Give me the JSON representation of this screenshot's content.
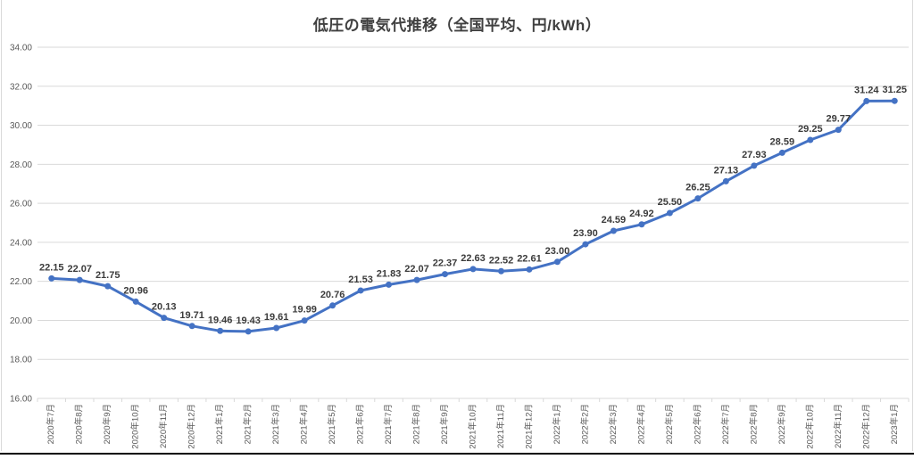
{
  "chart_title": "低圧の電気代推移（全国平均、円/kWh）",
  "chart_data": {
    "type": "line",
    "title": "低圧の電気代推移（全国平均、円/kWh）",
    "categories": [
      "2020年7月",
      "2020年8月",
      "2020年9月",
      "2020年10月",
      "2020年11月",
      "2020年12月",
      "2021年1月",
      "2021年2月",
      "2021年3月",
      "2021年4月",
      "2021年5月",
      "2021年6月",
      "2021年7月",
      "2021年8月",
      "2021年9月",
      "2021年10月",
      "2021年11月",
      "2021年12月",
      "2022年1月",
      "2022年2月",
      "2022年3月",
      "2022年4月",
      "2022年5月",
      "2022年6月",
      "2022年7月",
      "2022年8月",
      "2022年9月",
      "2022年10月",
      "2022年11月",
      "2022年12月",
      "2023年1月"
    ],
    "series": [
      {
        "name": "低圧の電気代（全国平均、円/kWh）",
        "values": [
          22.15,
          22.07,
          21.75,
          20.96,
          20.13,
          19.71,
          19.46,
          19.43,
          19.61,
          19.99,
          20.76,
          21.53,
          21.83,
          22.07,
          22.37,
          22.63,
          22.52,
          22.61,
          23.0,
          23.9,
          24.59,
          24.92,
          25.5,
          26.25,
          27.13,
          27.93,
          28.59,
          29.25,
          29.77,
          31.24,
          31.25
        ]
      }
    ],
    "xlabel": "",
    "ylabel": "",
    "ylim": [
      16,
      34
    ],
    "ytick_step": 2,
    "ytick_format_decimals": 2,
    "data_label_decimals": 2,
    "grid": true,
    "legend_position": "none",
    "colors": {
      "line": "#4472C4",
      "marker": "#4472C4",
      "data_label": "#3b3b3b",
      "axis_label": "#595959",
      "gridline": "#d9d9d9",
      "title": "#404040",
      "background": "#ffffff",
      "bottom_rule": "#000000",
      "page_edge": "#d9d9d9"
    }
  }
}
